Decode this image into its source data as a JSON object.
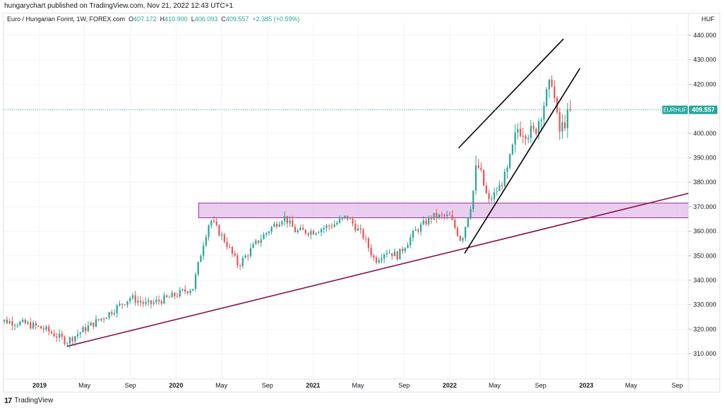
{
  "header": {
    "published": "hungarychart published on TradingView.com, Nov 21, 2022 12:43 UTC+1"
  },
  "legend": {
    "symbol": "Euro / Hungarian Forint, 1W, FOREX.com",
    "open_label": "O",
    "open": "407.172",
    "high_label": "H",
    "high": "410.900",
    "low_label": "L",
    "low": "406.093",
    "close_label": "C",
    "close": "409.557",
    "change": "+2.385 (+0.59%)"
  },
  "axis": {
    "currency": "HUF"
  },
  "price_tag": {
    "symbol": "EURHUF",
    "price": "409.557"
  },
  "footer": {
    "brand": "TradingView",
    "logo_glyph": "17"
  },
  "colors": {
    "up": "#26a69a",
    "down": "#ef5350",
    "zone_fill": "#e1bee7",
    "zone_stroke": "#9c27b0",
    "support_line": "#880e4f",
    "channel_line": "#000000",
    "price_tag_bg": "#26a69a"
  },
  "chart_data": {
    "type": "candlestick",
    "title": "Euro / Hungarian Forint, 1W, FOREX.com",
    "ylabel": "HUF",
    "ylim": [
      300,
      445
    ],
    "xlim": [
      "2018-09-01",
      "2023-10-01"
    ],
    "grid": true,
    "y_ticks": [
      310,
      320,
      330,
      340,
      350,
      360,
      370,
      380,
      390,
      400,
      410,
      420,
      430,
      440
    ],
    "y_tick_labels": [
      "310.000",
      "320.000",
      "330.000",
      "340.000",
      "350.000",
      "360.000",
      "370.000",
      "380.000",
      "390.000",
      "400.000",
      "410.000",
      "420.000",
      "430.000",
      "440.000"
    ],
    "x_ticks": [
      {
        "label": "2019",
        "date": "2019-01-01"
      },
      {
        "label": "May",
        "date": "2019-05-01"
      },
      {
        "label": "Sep",
        "date": "2019-09-01"
      },
      {
        "label": "2020",
        "date": "2020-01-01"
      },
      {
        "label": "May",
        "date": "2020-05-01"
      },
      {
        "label": "Sep",
        "date": "2020-09-01"
      },
      {
        "label": "2021",
        "date": "2021-01-01"
      },
      {
        "label": "May",
        "date": "2021-05-01"
      },
      {
        "label": "Sep",
        "date": "2021-09-01"
      },
      {
        "label": "2022",
        "date": "2022-01-01"
      },
      {
        "label": "May",
        "date": "2022-05-01"
      },
      {
        "label": "Sep",
        "date": "2022-09-01"
      },
      {
        "label": "2023",
        "date": "2023-01-01"
      },
      {
        "label": "May",
        "date": "2023-05-01"
      },
      {
        "label": "Sep",
        "date": "2023-09-01"
      }
    ],
    "close_anchors": [
      [
        "2018-09-01",
        324
      ],
      [
        "2018-12-01",
        322
      ],
      [
        "2019-01-15",
        320
      ],
      [
        "2019-03-15",
        315
      ],
      [
        "2019-05-01",
        320
      ],
      [
        "2019-07-01",
        326
      ],
      [
        "2019-09-01",
        333
      ],
      [
        "2019-10-15",
        330
      ],
      [
        "2019-12-15",
        333
      ],
      [
        "2020-02-15",
        337
      ],
      [
        "2020-03-15",
        356
      ],
      [
        "2020-04-01",
        365
      ],
      [
        "2020-05-15",
        355
      ],
      [
        "2020-06-15",
        346
      ],
      [
        "2020-08-01",
        355
      ],
      [
        "2020-09-15",
        362
      ],
      [
        "2020-10-15",
        366
      ],
      [
        "2020-11-15",
        360
      ],
      [
        "2021-01-01",
        360
      ],
      [
        "2021-03-01",
        363
      ],
      [
        "2021-04-01",
        366
      ],
      [
        "2021-05-15",
        358
      ],
      [
        "2021-06-15",
        348
      ],
      [
        "2021-07-15",
        352
      ],
      [
        "2021-08-15",
        350
      ],
      [
        "2021-10-01",
        360
      ],
      [
        "2021-11-15",
        366
      ],
      [
        "2022-01-01",
        366
      ],
      [
        "2022-02-01",
        356
      ],
      [
        "2022-03-01",
        372
      ],
      [
        "2022-03-15",
        388
      ],
      [
        "2022-04-15",
        372
      ],
      [
        "2022-06-01",
        382
      ],
      [
        "2022-07-01",
        402
      ],
      [
        "2022-08-15",
        400
      ],
      [
        "2022-10-01",
        422
      ],
      [
        "2022-10-20",
        400
      ],
      [
        "2022-11-21",
        409.557
      ]
    ],
    "drawings": {
      "resistance_zone": {
        "y_low": 365.5,
        "y_high": 371.5,
        "from": "2020-03-01",
        "to": "2023-10-15"
      },
      "support_trendline": {
        "from": [
          "2019-03-15",
          313
        ],
        "to": [
          "2023-10-15",
          376
        ]
      },
      "channel_upper": {
        "from": [
          "2022-01-25",
          394
        ],
        "to": [
          "2022-11-01",
          438.5
        ]
      },
      "channel_lower": {
        "from": [
          "2022-02-10",
          351
        ],
        "to": [
          "2022-12-15",
          426.5
        ]
      }
    },
    "last_price": 409.557
  }
}
